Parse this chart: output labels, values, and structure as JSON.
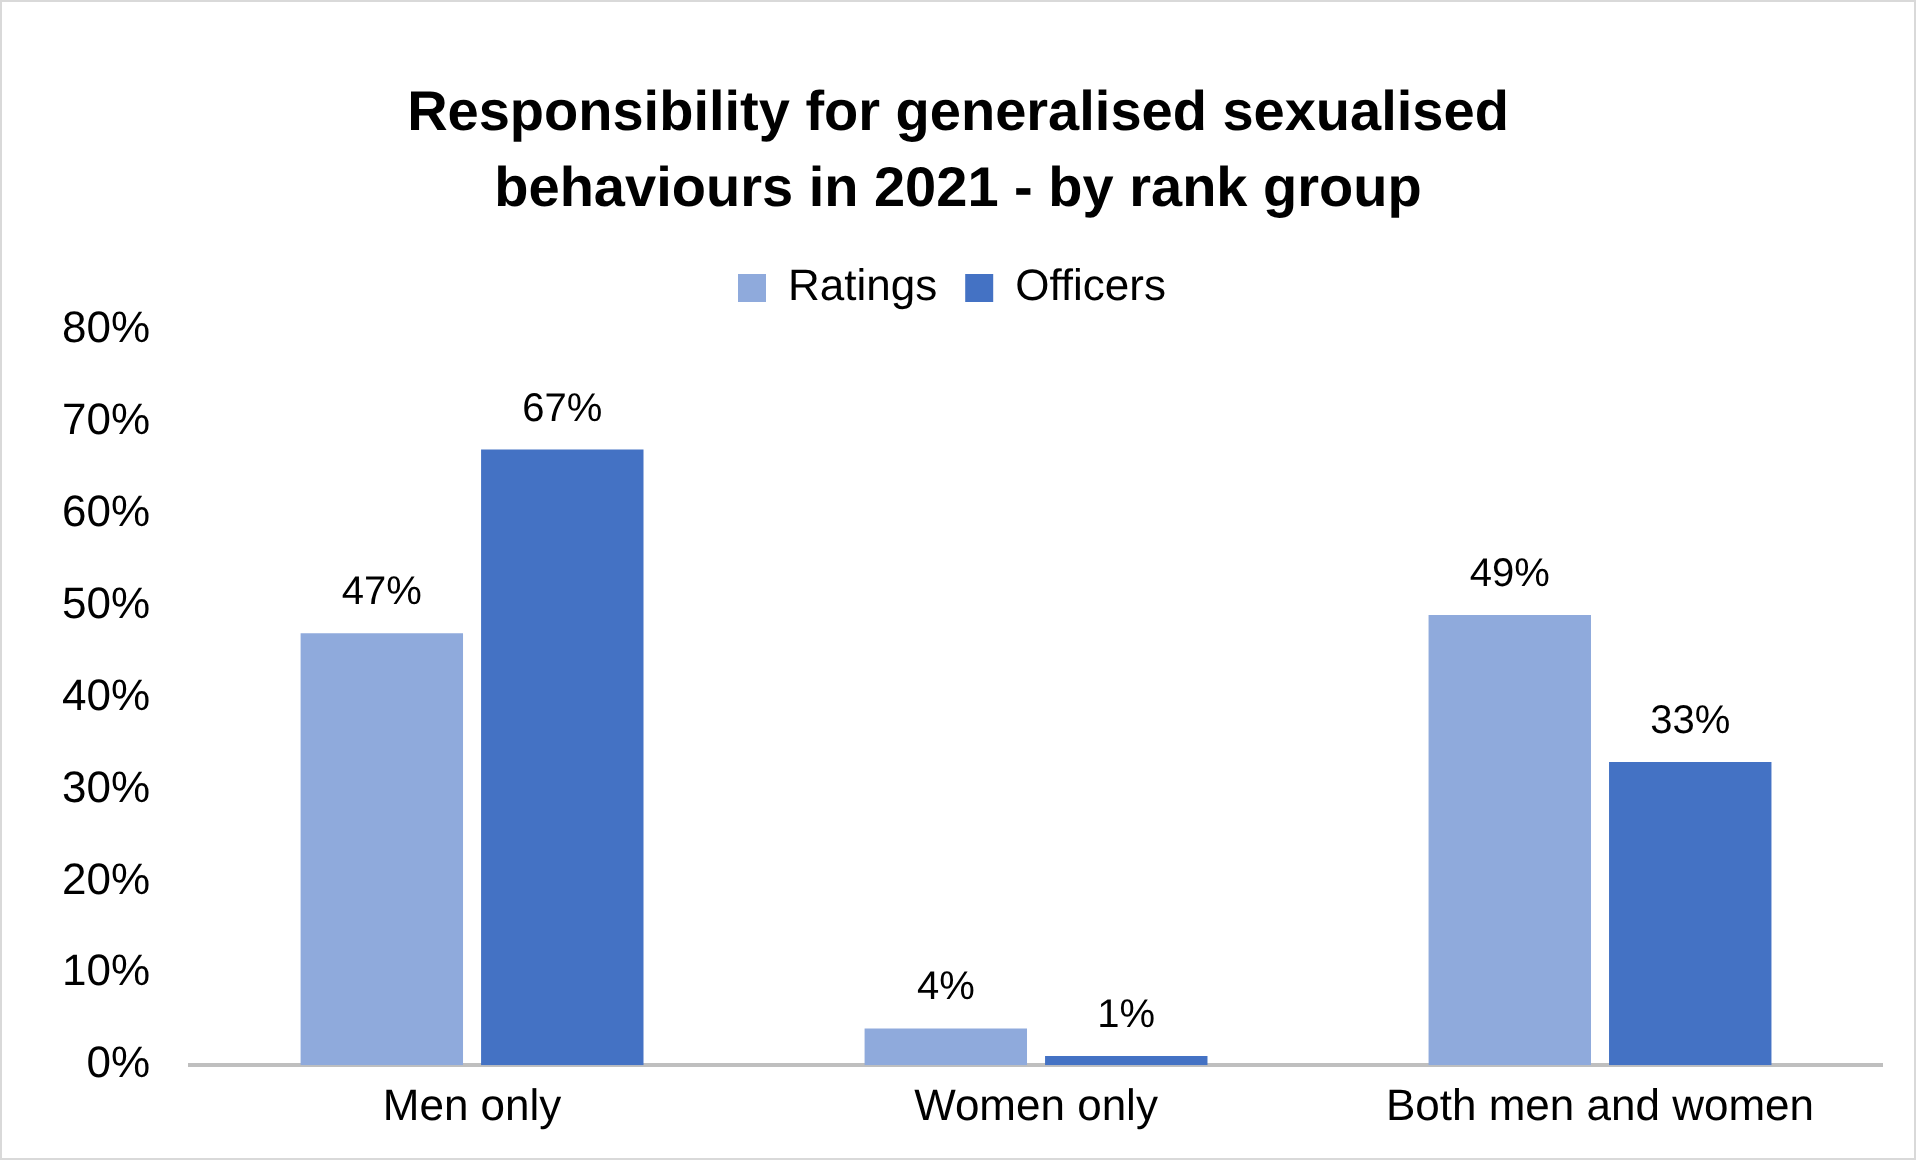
{
  "chart_data": {
    "type": "bar",
    "title": "Responsibility for generalised sexualised behaviours in 2021 - by rank group",
    "categories": [
      "Men only",
      "Women only",
      "Both men and women"
    ],
    "series": [
      {
        "name": "Ratings",
        "color": "#8faadc",
        "values": [
          47,
          4,
          49
        ],
        "value_labels": [
          "47%",
          "4%",
          "49%"
        ]
      },
      {
        "name": "Officers",
        "color": "#4472c4",
        "values": [
          67,
          1,
          33
        ],
        "value_labels": [
          "67%",
          "1%",
          "33%"
        ]
      }
    ],
    "ylim": [
      0,
      80
    ],
    "yticks": [
      {
        "value": 0,
        "label": "0%"
      },
      {
        "value": 10,
        "label": "10%"
      },
      {
        "value": 20,
        "label": "20%"
      },
      {
        "value": 30,
        "label": "30%"
      },
      {
        "value": 40,
        "label": "40%"
      },
      {
        "value": 50,
        "label": "50%"
      },
      {
        "value": 60,
        "label": "60%"
      },
      {
        "value": 70,
        "label": "70%"
      },
      {
        "value": 80,
        "label": "80%"
      }
    ],
    "grid": false,
    "legend": "top"
  }
}
